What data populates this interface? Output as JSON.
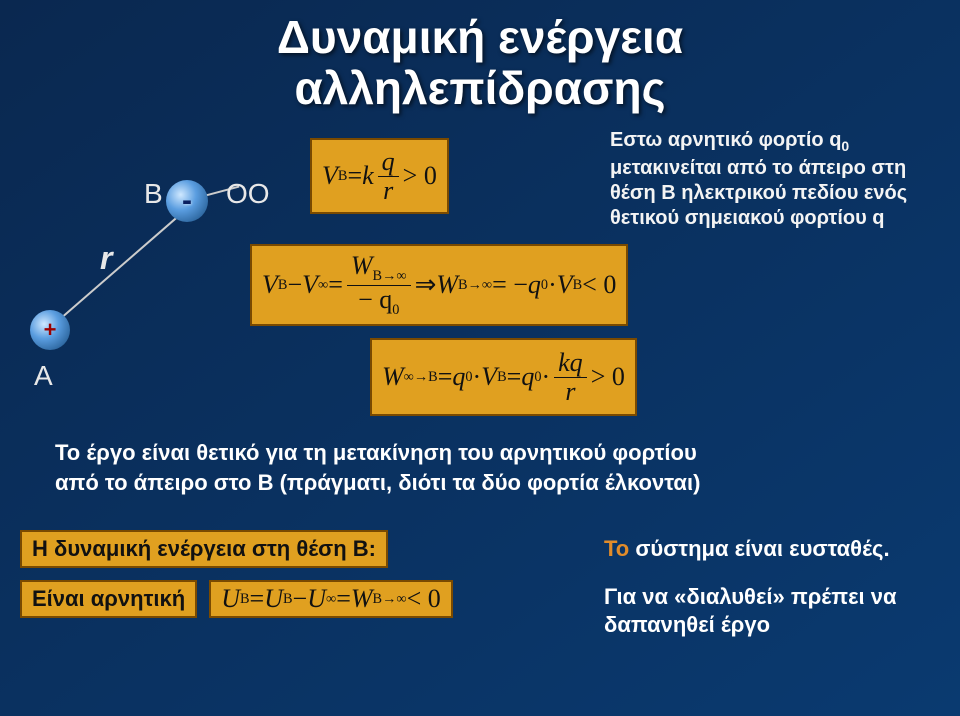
{
  "title_line1": "Δυναμική ενέργεια",
  "title_line2": "αλληλεπίδρασης",
  "labels": {
    "A": "A",
    "B": "B",
    "OO": "OO",
    "r": "r",
    "plus": "+",
    "minus": "-"
  },
  "context": {
    "l1": "Εστω αρνητικό φορτίο q",
    "l1sub": "0",
    "l2": "μετακινείται από το άπειρο στη",
    "l3": "θέση Β  ηλεκτρικού πεδίου ενός",
    "l4": "θετικού σημειακού φορτίου q"
  },
  "eq1": {
    "lhs_V": "V",
    "lhs_sub": "B",
    "eq": " = ",
    "k": "k",
    "num": "q",
    "den": "r",
    "tail": " > 0"
  },
  "eq2": {
    "a": "V",
    "a_sub": "B",
    "minus": " − ",
    "b": "V",
    "b_sub": "∞",
    "eq": " = ",
    "num_W": "W",
    "num_sub": "B→∞",
    "den_mq": "− q",
    "den_sub": "0",
    "impl": " ⇒ ",
    "W": "W",
    "W_sub": "B→∞",
    "eq2": " = −",
    "q0": "q",
    "q0_sub": "0",
    "dot": " · ",
    "V2": "V",
    "V2_sub": "B",
    "tail": " < 0"
  },
  "eq3": {
    "W": "W",
    "W_sub": "∞→B",
    "eq": " = ",
    "q0": "q",
    "q0_sub": "0",
    "dot": " · ",
    "V": "V",
    "V_sub": "B",
    "eq2": " = ",
    "q02": "q",
    "q02_sub": "0",
    "dot2": " · ",
    "num": "kq",
    "den": "r",
    "tail": " > 0"
  },
  "body1": "Το έργο είναι θετικό για τη μετακίνηση του αρνητικού φορτίου",
  "body2": "από το άπειρο στο Β (πράγματι, διότι τα δύο φορτία έλκονται)",
  "note1": "Η δυναμική ενέργεια στη θέση Β:",
  "note2": "Είναι αρνητική",
  "eq4": {
    "U": "U",
    "U_sub": "B",
    "eq": " = ",
    "U2": "U",
    "U2_sub": "B",
    "minus": " − ",
    "U3": "U",
    "U3_sub": "∞",
    "eq2": " = ",
    "W": "W",
    "W_sub": "B→∞",
    "tail": " < 0"
  },
  "right1": "Το σύστημα είναι ευσταθές.",
  "right2a": "Για να «διαλυθεί» πρέπει να",
  "right2b": "δαπανηθεί έργο"
}
